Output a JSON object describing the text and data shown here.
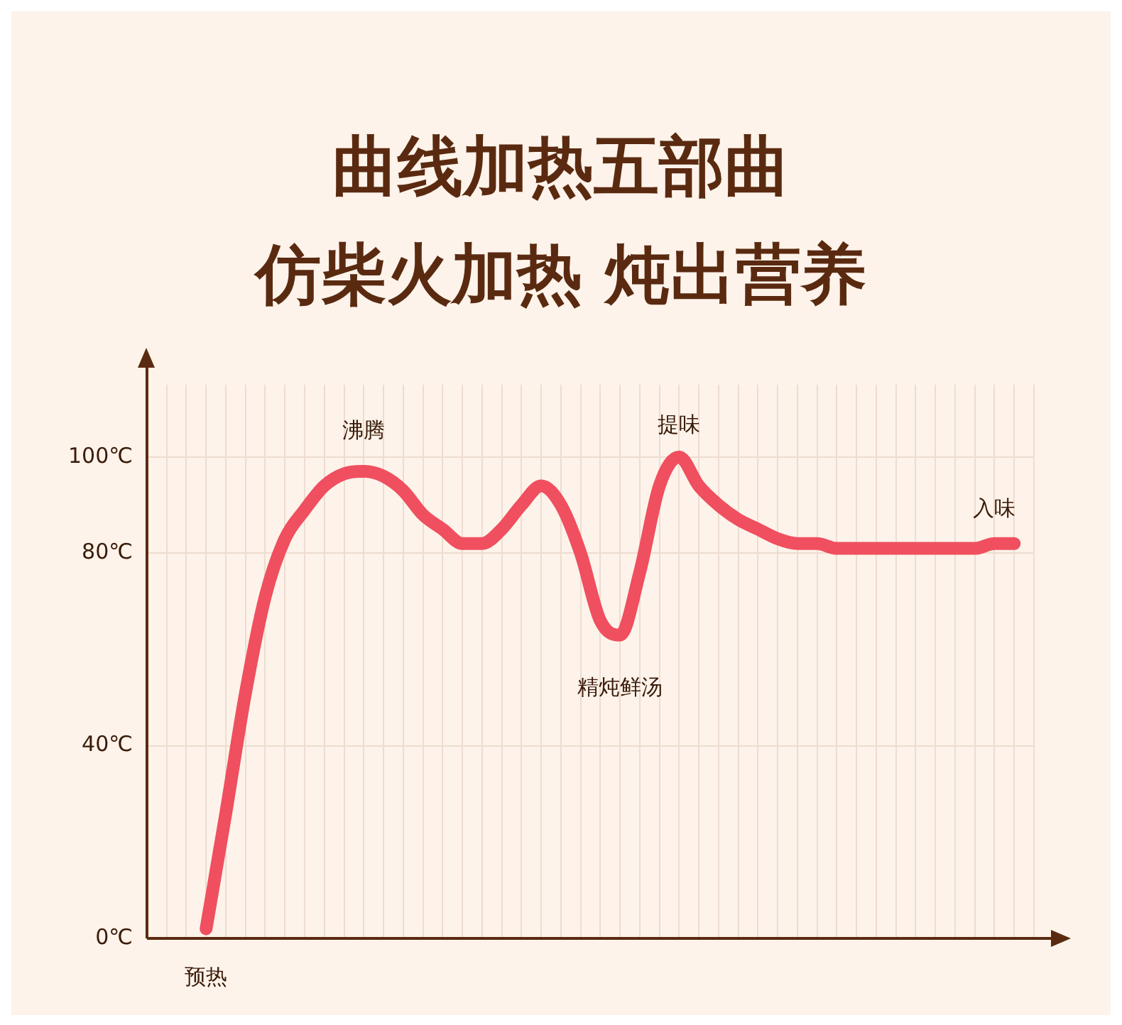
{
  "chart_data": {
    "type": "line",
    "title": "曲线加热五部曲",
    "subtitle": "仿柴火加热 炖出营养",
    "categories": [
      null,
      null,
      null,
      null,
      null,
      null,
      null,
      null,
      null,
      null,
      null,
      null,
      null,
      null,
      null,
      null,
      null,
      null,
      null,
      null,
      null,
      null,
      null,
      null,
      null,
      null,
      null,
      null,
      null,
      null,
      null,
      null,
      null,
      null,
      null,
      null,
      null,
      null,
      null,
      null,
      null,
      null,
      null,
      null,
      null,
      null
    ],
    "series": [
      {
        "color": "#ef4f5f",
        "values": [
          null,
          null,
          null,
          2,
          26,
          51,
          71,
          83,
          89,
          94,
          96.5,
          97,
          96,
          93,
          88,
          85,
          82,
          82,
          85,
          90,
          94,
          90,
          80,
          66,
          63,
          76,
          94,
          100,
          94,
          90,
          87,
          85,
          83,
          82,
          82,
          81,
          81,
          81,
          81,
          81,
          81,
          81,
          81,
          82,
          82,
          null
        ]
      }
    ],
    "ylim": [
      0,
      115
    ],
    "yticks": [
      {
        "value": 0,
        "label": "0℃"
      },
      {
        "value": 40,
        "label": "40℃"
      },
      {
        "value": 80,
        "label": "80℃"
      },
      {
        "value": 100,
        "label": "100℃"
      }
    ],
    "tick_labels": "y",
    "grid": true,
    "legend": false,
    "marker": "none",
    "line_style": "solid",
    "annotations": [
      "沸腾",
      "提味",
      "入味",
      "精炖鲜汤",
      "预热"
    ]
  }
}
